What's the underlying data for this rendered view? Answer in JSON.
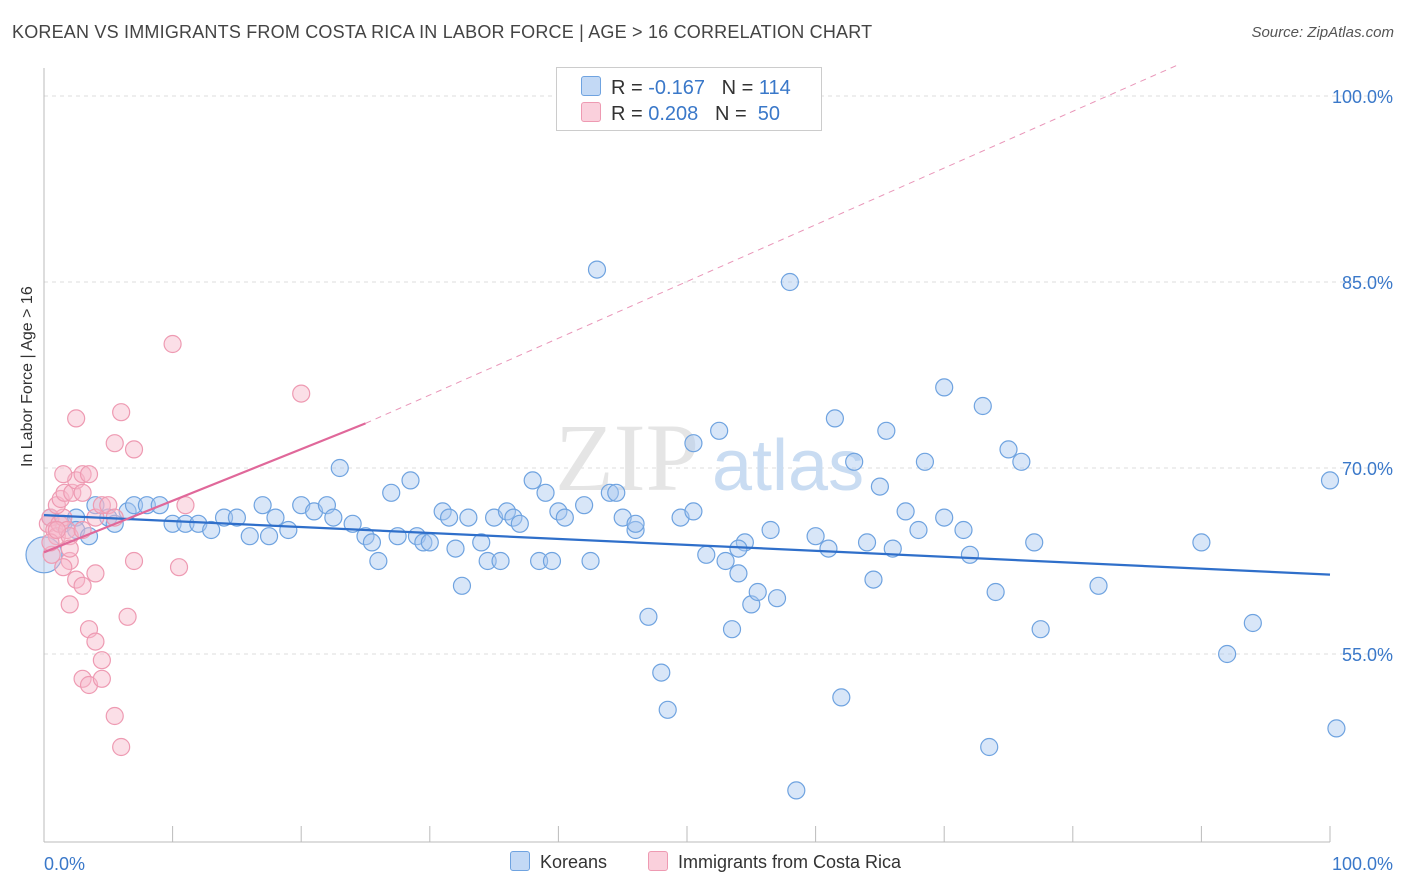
{
  "title": "KOREAN VS IMMIGRANTS FROM COSTA RICA IN LABOR FORCE | AGE > 16 CORRELATION CHART",
  "source": "Source: ZipAtlas.com",
  "watermark": {
    "zip": "ZIP",
    "atlas": "atlas"
  },
  "legend": {
    "rows": [
      {
        "r_label": "R =",
        "r_value": "-0.167",
        "n_label": "N =",
        "n_value": "114",
        "color": "#a8c8f0"
      },
      {
        "r_label": "R =",
        "r_value": "0.208",
        "n_label": "N =",
        "n_value": "50",
        "color": "#f6b8c9"
      }
    ]
  },
  "bottom_legend": [
    {
      "label": "Koreans",
      "color": "#a8c8f0"
    },
    {
      "label": "Immigrants from Costa Rica",
      "color": "#f6b8c9"
    }
  ],
  "chart_data": {
    "type": "scatter",
    "xlabel": "",
    "ylabel": "In Labor Force | Age > 16",
    "xlim": [
      0,
      100
    ],
    "ylim": [
      40,
      101
    ],
    "x_tick_labels": [
      "0.0%",
      "100.0%"
    ],
    "y_ticks": [
      55,
      70,
      85,
      100
    ],
    "y_tick_labels": [
      "55.0%",
      "70.0%",
      "85.0%",
      "100.0%"
    ],
    "grid": true,
    "series": [
      {
        "name": "Koreans",
        "color": "#6fa3e0",
        "fill": "#a8c8f0",
        "trend": {
          "x": [
            0,
            100
          ],
          "y": [
            66.2,
            61.4
          ],
          "color": "#2f6fca"
        },
        "points": [
          [
            0.5,
            66.0
          ],
          [
            1.5,
            65.5
          ],
          [
            2.5,
            66.0
          ],
          [
            4.0,
            67.0
          ],
          [
            5.0,
            66.0
          ],
          [
            5.5,
            65.5
          ],
          [
            6.5,
            66.5
          ],
          [
            7.0,
            67.0
          ],
          [
            8.0,
            67.0
          ],
          [
            9.0,
            67.0
          ],
          [
            10.0,
            65.5
          ],
          [
            11.0,
            65.5
          ],
          [
            12.0,
            65.5
          ],
          [
            13.0,
            65.0
          ],
          [
            14.0,
            66.0
          ],
          [
            15.0,
            66.0
          ],
          [
            16.0,
            64.5
          ],
          [
            17.0,
            67.0
          ],
          [
            17.5,
            64.5
          ],
          [
            18.0,
            66.0
          ],
          [
            19.0,
            65.0
          ],
          [
            20.0,
            67.0
          ],
          [
            21.0,
            66.5
          ],
          [
            22.0,
            67.0
          ],
          [
            22.5,
            66.0
          ],
          [
            23.0,
            70.0
          ],
          [
            24.0,
            65.5
          ],
          [
            25.0,
            64.5
          ],
          [
            25.5,
            64.0
          ],
          [
            26.0,
            62.5
          ],
          [
            27.0,
            68.0
          ],
          [
            27.5,
            64.5
          ],
          [
            28.5,
            69.0
          ],
          [
            29.0,
            64.5
          ],
          [
            29.5,
            64.0
          ],
          [
            30.0,
            64.0
          ],
          [
            31.0,
            66.5
          ],
          [
            31.5,
            66.0
          ],
          [
            32.0,
            63.5
          ],
          [
            32.5,
            60.5
          ],
          [
            33.0,
            66.0
          ],
          [
            34.0,
            64.0
          ],
          [
            34.5,
            62.5
          ],
          [
            35.0,
            66.0
          ],
          [
            35.5,
            62.5
          ],
          [
            36.0,
            66.5
          ],
          [
            36.5,
            66.0
          ],
          [
            37.0,
            65.5
          ],
          [
            38.0,
            69.0
          ],
          [
            38.5,
            62.5
          ],
          [
            39.0,
            68.0
          ],
          [
            39.5,
            62.5
          ],
          [
            40.0,
            66.5
          ],
          [
            40.5,
            66.0
          ],
          [
            42.0,
            67.0
          ],
          [
            42.5,
            62.5
          ],
          [
            43.0,
            86.0
          ],
          [
            44.0,
            68.0
          ],
          [
            44.5,
            68.0
          ],
          [
            45.0,
            66.0
          ],
          [
            46.0,
            65.0
          ],
          [
            47.0,
            58.0
          ],
          [
            48.0,
            53.5
          ],
          [
            48.5,
            50.5
          ],
          [
            49.5,
            66.0
          ],
          [
            50.5,
            66.5
          ],
          [
            50.5,
            72.0
          ],
          [
            51.5,
            63.0
          ],
          [
            52.5,
            73.0
          ],
          [
            53.0,
            62.5
          ],
          [
            53.5,
            57.0
          ],
          [
            54.0,
            61.5
          ],
          [
            54.5,
            64.0
          ],
          [
            55.0,
            59.0
          ],
          [
            55.5,
            60.0
          ],
          [
            56.5,
            65.0
          ],
          [
            57.0,
            59.5
          ],
          [
            58.0,
            85.0
          ],
          [
            58.5,
            44.0
          ],
          [
            61.5,
            74.0
          ],
          [
            61.0,
            63.5
          ],
          [
            62.0,
            51.5
          ],
          [
            63.0,
            70.5
          ],
          [
            64.0,
            64.0
          ],
          [
            64.5,
            61.0
          ],
          [
            65.0,
            68.5
          ],
          [
            65.5,
            73.0
          ],
          [
            66.0,
            63.5
          ],
          [
            67.0,
            66.5
          ],
          [
            68.0,
            65.0
          ],
          [
            68.5,
            70.5
          ],
          [
            70.0,
            76.5
          ],
          [
            70.0,
            66.0
          ],
          [
            71.5,
            65.0
          ],
          [
            73.0,
            75.0
          ],
          [
            73.5,
            47.5
          ],
          [
            74.0,
            60.0
          ],
          [
            75.0,
            71.5
          ],
          [
            76.0,
            70.5
          ],
          [
            77.0,
            64.0
          ],
          [
            77.5,
            57.0
          ],
          [
            82.0,
            60.5
          ],
          [
            90.0,
            64.0
          ],
          [
            92.0,
            55.0
          ],
          [
            94.0,
            57.5
          ],
          [
            100.0,
            69.0
          ],
          [
            100.5,
            49.0
          ],
          [
            2.5,
            65.0
          ],
          [
            3.5,
            64.5
          ],
          [
            46.0,
            65.5
          ],
          [
            54.0,
            63.5
          ],
          [
            60.0,
            64.5
          ],
          [
            72.0,
            63.0
          ],
          [
            0.0,
            63.0
          ]
        ]
      },
      {
        "name": "Immigrants from Costa Rica",
        "color": "#ee9ab2",
        "fill": "#f6b8c9",
        "trend": {
          "x": [
            0,
            25
          ],
          "y": [
            63.2,
            73.6
          ],
          "color": "#e0689a"
        },
        "trend_extension": {
          "x": [
            25,
            100
          ],
          "y": [
            73.6,
            105.0
          ]
        },
        "points": [
          [
            0.3,
            65.5
          ],
          [
            0.5,
            66.0
          ],
          [
            0.8,
            65.0
          ],
          [
            1.0,
            64.5
          ],
          [
            1.2,
            65.5
          ],
          [
            1.5,
            66.0
          ],
          [
            1.8,
            65.0
          ],
          [
            2.0,
            64.5
          ],
          [
            0.6,
            63.0
          ],
          [
            1.0,
            67.0
          ],
          [
            1.3,
            67.5
          ],
          [
            1.6,
            68.0
          ],
          [
            2.2,
            68.0
          ],
          [
            2.5,
            69.0
          ],
          [
            3.0,
            69.5
          ],
          [
            3.5,
            69.5
          ],
          [
            3.0,
            68.0
          ],
          [
            4.0,
            66.0
          ],
          [
            4.5,
            67.0
          ],
          [
            5.0,
            67.0
          ],
          [
            5.5,
            66.0
          ],
          [
            2.0,
            62.5
          ],
          [
            2.5,
            61.0
          ],
          [
            2.0,
            59.0
          ],
          [
            3.0,
            60.5
          ],
          [
            3.5,
            57.0
          ],
          [
            4.0,
            56.0
          ],
          [
            4.5,
            54.5
          ],
          [
            3.0,
            53.0
          ],
          [
            3.5,
            52.5
          ],
          [
            4.5,
            53.0
          ],
          [
            5.5,
            50.0
          ],
          [
            6.0,
            47.5
          ],
          [
            6.5,
            58.0
          ],
          [
            7.0,
            62.5
          ],
          [
            2.5,
            74.0
          ],
          [
            6.0,
            74.5
          ],
          [
            5.5,
            72.0
          ],
          [
            7.0,
            71.5
          ],
          [
            10.0,
            80.0
          ],
          [
            10.5,
            62.0
          ],
          [
            11.0,
            67.0
          ],
          [
            20.0,
            76.0
          ],
          [
            2.0,
            63.5
          ],
          [
            1.5,
            62.0
          ],
          [
            0.5,
            64.0
          ],
          [
            1.0,
            65.0
          ],
          [
            4.0,
            61.5
          ],
          [
            3.0,
            65.0
          ],
          [
            1.5,
            69.5
          ]
        ]
      }
    ]
  }
}
